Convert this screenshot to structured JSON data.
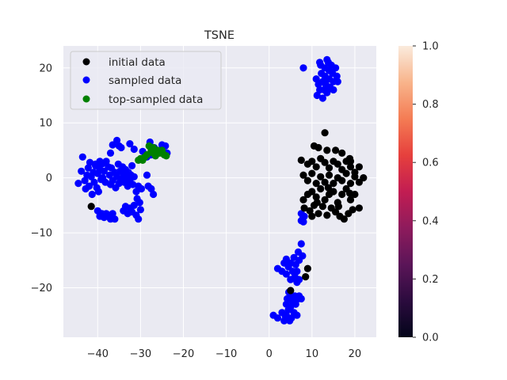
{
  "chart_data": {
    "type": "scatter",
    "title": "TSNE",
    "xlabel": "",
    "ylabel": "",
    "xlim": [
      -48,
      25
    ],
    "ylim": [
      -29,
      24
    ],
    "grid": true,
    "legend_position": "top-left",
    "x_ticks": [
      -40,
      -30,
      -20,
      -10,
      0,
      10,
      20
    ],
    "x_tick_labels": [
      "−40",
      "−30",
      "−20",
      "−10",
      "0",
      "10",
      "20"
    ],
    "y_ticks": [
      -20,
      -10,
      0,
      10,
      20
    ],
    "y_tick_labels": [
      "−20",
      "−10",
      "0",
      "10",
      "20"
    ],
    "colorbar": {
      "range": [
        0.0,
        1.0
      ],
      "ticks": [
        0.0,
        0.2,
        0.4,
        0.6,
        0.8,
        1.0
      ],
      "tick_labels": [
        "0.0",
        "0.2",
        "0.4",
        "0.6",
        "0.8",
        "1.0"
      ],
      "colormap_stops": [
        "#03051a",
        "#2b0b3e",
        "#5b1558",
        "#8e1b5c",
        "#c21d52",
        "#e6403d",
        "#f47c54",
        "#f8b48b",
        "#faebdd"
      ]
    },
    "series": [
      {
        "name": "sampled data",
        "color": "#0000ff",
        "points": [
          [
            -44.5,
            -1
          ],
          [
            -43.8,
            1.2
          ],
          [
            -43.5,
            3.8
          ],
          [
            -43,
            -0.5
          ],
          [
            -42.8,
            -2
          ],
          [
            -42.5,
            0.5
          ],
          [
            -42.2,
            1.8
          ],
          [
            -42,
            -1.5
          ],
          [
            -41.8,
            2.8
          ],
          [
            -41.5,
            0.2
          ],
          [
            -41.3,
            -3
          ],
          [
            -41,
            1
          ],
          [
            -40.8,
            -0.8
          ],
          [
            -40.5,
            2.2
          ],
          [
            -40.2,
            -1.8
          ],
          [
            -40,
            0.8
          ],
          [
            -39.8,
            -2.5
          ],
          [
            -39.5,
            1.5
          ],
          [
            -39.2,
            -0.3
          ],
          [
            -39,
            2.5
          ],
          [
            -38.8,
            0
          ],
          [
            -38.5,
            1.2
          ],
          [
            -38.2,
            -0.8
          ],
          [
            -38,
            3
          ],
          [
            -37.5,
            2
          ],
          [
            -37.2,
            0.5
          ],
          [
            -37,
            -1.2
          ],
          [
            -36.8,
            1.8
          ],
          [
            -36.5,
            -0.5
          ],
          [
            -36,
            1
          ],
          [
            -35.8,
            -1.8
          ],
          [
            -35.5,
            0.2
          ],
          [
            -35.2,
            2.5
          ],
          [
            -35,
            -1
          ],
          [
            -34.8,
            1.2
          ],
          [
            -34.5,
            -0.2
          ],
          [
            -34.2,
            2
          ],
          [
            -34,
            0.8
          ],
          [
            -33.8,
            -0.8
          ],
          [
            -33.5,
            1.5
          ],
          [
            -33.2,
            0
          ],
          [
            -33,
            -1.5
          ],
          [
            -32.8,
            1
          ],
          [
            -32.5,
            -0.5
          ],
          [
            -32.2,
            0.5
          ],
          [
            -32,
            2.2
          ],
          [
            -31.8,
            -1.2
          ],
          [
            -31.5,
            0.2
          ],
          [
            -31,
            -2.5
          ],
          [
            -30.8,
            -3.8
          ],
          [
            -30.5,
            -1.5
          ],
          [
            -30.2,
            -4.5
          ],
          [
            -29.8,
            -2
          ],
          [
            -40,
            -6
          ],
          [
            -39.5,
            -7
          ],
          [
            -39,
            -6.5
          ],
          [
            -38.5,
            -7.2
          ],
          [
            -38,
            -6.5
          ],
          [
            -37.5,
            -6.8
          ],
          [
            -37,
            -7.5
          ],
          [
            -36.5,
            -6.5
          ],
          [
            -36,
            -7.5
          ],
          [
            -34,
            -6
          ],
          [
            -33.5,
            -5.2
          ],
          [
            -33,
            -6.5
          ],
          [
            -32.5,
            -5.5
          ],
          [
            -32,
            -6.2
          ],
          [
            -31.5,
            -5
          ],
          [
            -31,
            -6.8
          ],
          [
            -30.5,
            -7.5
          ],
          [
            -30,
            -5.8
          ],
          [
            -40.5,
            2.5
          ],
          [
            -39.5,
            3
          ],
          [
            -37,
            4.5
          ],
          [
            -36.5,
            6
          ],
          [
            -35.5,
            6.8
          ],
          [
            -35,
            5.8
          ],
          [
            -34.5,
            5.5
          ],
          [
            -32.5,
            6.2
          ],
          [
            -31.5,
            5.2
          ],
          [
            -29.5,
            4.8
          ],
          [
            -28.5,
            3.8
          ],
          [
            -27.8,
            6.5
          ],
          [
            -27.5,
            4.2
          ],
          [
            -26.8,
            5.5
          ],
          [
            -26,
            4.8
          ],
          [
            -25,
            6
          ],
          [
            -24.2,
            5.8
          ],
          [
            -23.8,
            4.5
          ],
          [
            -28.5,
            0.5
          ],
          [
            -28.2,
            -1.5
          ],
          [
            -27.5,
            -2
          ],
          [
            -27,
            -3
          ],
          [
            8,
            20
          ],
          [
            11,
            18
          ],
          [
            11.5,
            17
          ],
          [
            11.2,
            15
          ],
          [
            11.8,
            16
          ],
          [
            12,
            20.5
          ],
          [
            12.2,
            19
          ],
          [
            12.5,
            17.5
          ],
          [
            12.8,
            16
          ],
          [
            13,
            20
          ],
          [
            13,
            18.5
          ],
          [
            13.2,
            17
          ],
          [
            13.5,
            15.5
          ],
          [
            13.8,
            21
          ],
          [
            14,
            19.5
          ],
          [
            14,
            18
          ],
          [
            14.2,
            16.5
          ],
          [
            14.5,
            20.5
          ],
          [
            14.8,
            19
          ],
          [
            15,
            17.5
          ],
          [
            15,
            16
          ],
          [
            15.5,
            20
          ],
          [
            15.8,
            18.5
          ],
          [
            16,
            17.5
          ],
          [
            12.5,
            14.5
          ],
          [
            11.8,
            21
          ],
          [
            13.5,
            21.5
          ],
          [
            7.5,
            -6.5
          ],
          [
            7.8,
            -7.5
          ],
          [
            8,
            -8
          ],
          [
            8.2,
            -7
          ],
          [
            7.5,
            -7.8
          ],
          [
            2,
            -16.5
          ],
          [
            3,
            -17
          ],
          [
            3.5,
            -15.5
          ],
          [
            4,
            -17.5
          ],
          [
            4,
            -14.8
          ],
          [
            4.5,
            -16.2
          ],
          [
            5,
            -18.5
          ],
          [
            5,
            -15.5
          ],
          [
            5.5,
            -17
          ],
          [
            5.8,
            -14.5
          ],
          [
            6,
            -18
          ],
          [
            6.2,
            -15.8
          ],
          [
            6.5,
            -17
          ],
          [
            6.8,
            -13.5
          ],
          [
            7,
            -15
          ],
          [
            7,
            -18.5
          ],
          [
            7.5,
            -12
          ],
          [
            7.8,
            -14.2
          ],
          [
            6.5,
            -19
          ],
          [
            1,
            -25
          ],
          [
            2,
            -25.5
          ],
          [
            3,
            -24.5
          ],
          [
            3.5,
            -26
          ],
          [
            4,
            -23
          ],
          [
            4,
            -25
          ],
          [
            4.2,
            -22
          ],
          [
            4.5,
            -24
          ],
          [
            4.8,
            -26
          ],
          [
            5,
            -21.5
          ],
          [
            5,
            -23.5
          ],
          [
            5.2,
            -25.5
          ],
          [
            5.5,
            -22.5
          ],
          [
            5.8,
            -24.5
          ],
          [
            6,
            -21.5
          ],
          [
            6.2,
            -23
          ],
          [
            6.5,
            -25
          ],
          [
            6.8,
            -22
          ],
          [
            7,
            -21.5
          ],
          [
            7.5,
            -22
          ],
          [
            3.8,
            -25.2
          ],
          [
            4.6,
            -20.8
          ]
        ]
      },
      {
        "name": "top-sampled data",
        "color": "#008000",
        "points": [
          [
            -30.5,
            3.2
          ],
          [
            -30,
            3.5
          ],
          [
            -29.5,
            3.2
          ],
          [
            -29,
            3.8
          ],
          [
            -28.5,
            4.2
          ],
          [
            -28,
            5.8
          ],
          [
            -27.5,
            5
          ],
          [
            -27,
            5.5
          ],
          [
            -27,
            4.5
          ],
          [
            -26.5,
            4
          ],
          [
            -26,
            5
          ],
          [
            -25.5,
            4.5
          ],
          [
            -25,
            5
          ],
          [
            -24.5,
            4.2
          ],
          [
            -24,
            4
          ],
          [
            -26.8,
            4.8
          ]
        ]
      },
      {
        "name": "initial data",
        "color": "#000000",
        "points": [
          [
            -41.5,
            -5.2
          ],
          [
            5,
            -20.5
          ],
          [
            8.5,
            -18
          ],
          [
            9,
            -16.5
          ],
          [
            13,
            8.2
          ],
          [
            10.5,
            5.8
          ],
          [
            11.5,
            5.5
          ],
          [
            13.5,
            5
          ],
          [
            15.5,
            5
          ],
          [
            17,
            4.5
          ],
          [
            18.8,
            3.5
          ],
          [
            19,
            3
          ],
          [
            7.5,
            3.2
          ],
          [
            9,
            2.5
          ],
          [
            10,
            3
          ],
          [
            11,
            2
          ],
          [
            12,
            3.5
          ],
          [
            13,
            2.8
          ],
          [
            14,
            1.8
          ],
          [
            15,
            3
          ],
          [
            16,
            2.5
          ],
          [
            17,
            1.5
          ],
          [
            18,
            3
          ],
          [
            19,
            2
          ],
          [
            20,
            1
          ],
          [
            21,
            2
          ],
          [
            22,
            0
          ],
          [
            8,
            0.5
          ],
          [
            9,
            -0.5
          ],
          [
            10,
            0.8
          ],
          [
            11,
            -1
          ],
          [
            12,
            0.2
          ],
          [
            13,
            -0.8
          ],
          [
            14,
            0.5
          ],
          [
            15,
            -1
          ],
          [
            16,
            0
          ],
          [
            17,
            -0.5
          ],
          [
            18,
            0.8
          ],
          [
            19,
            -1
          ],
          [
            20,
            0.2
          ],
          [
            21,
            -0.8
          ],
          [
            8,
            -4
          ],
          [
            9,
            -3
          ],
          [
            10,
            -2.5
          ],
          [
            11,
            -3.5
          ],
          [
            12,
            -2
          ],
          [
            13,
            -4
          ],
          [
            14,
            -3
          ],
          [
            15,
            -2.5
          ],
          [
            16,
            -4.5
          ],
          [
            17,
            -3
          ],
          [
            18,
            -2
          ],
          [
            19,
            -4
          ],
          [
            20,
            -3
          ],
          [
            21,
            -5.5
          ],
          [
            8.2,
            -5.5
          ],
          [
            9.5,
            -6
          ],
          [
            10.5,
            -5
          ],
          [
            11.5,
            -6.5
          ],
          [
            12.5,
            -5.2
          ],
          [
            13.5,
            -6.8
          ],
          [
            14.5,
            -5.5
          ],
          [
            15.5,
            -6.2
          ],
          [
            16.5,
            -7
          ],
          [
            17.5,
            -7.5
          ],
          [
            18.5,
            -6.5
          ],
          [
            19.5,
            -5.8
          ],
          [
            16.2,
            -5.2
          ],
          [
            13.8,
            -1.8
          ],
          [
            11.2,
            -4.5
          ],
          [
            18.8,
            -2.8
          ],
          [
            10,
            -7
          ]
        ]
      }
    ],
    "legend": [
      {
        "label": "initial data",
        "color": "#000000"
      },
      {
        "label": "sampled data",
        "color": "#0000ff"
      },
      {
        "label": "top-sampled data",
        "color": "#008000"
      }
    ]
  }
}
